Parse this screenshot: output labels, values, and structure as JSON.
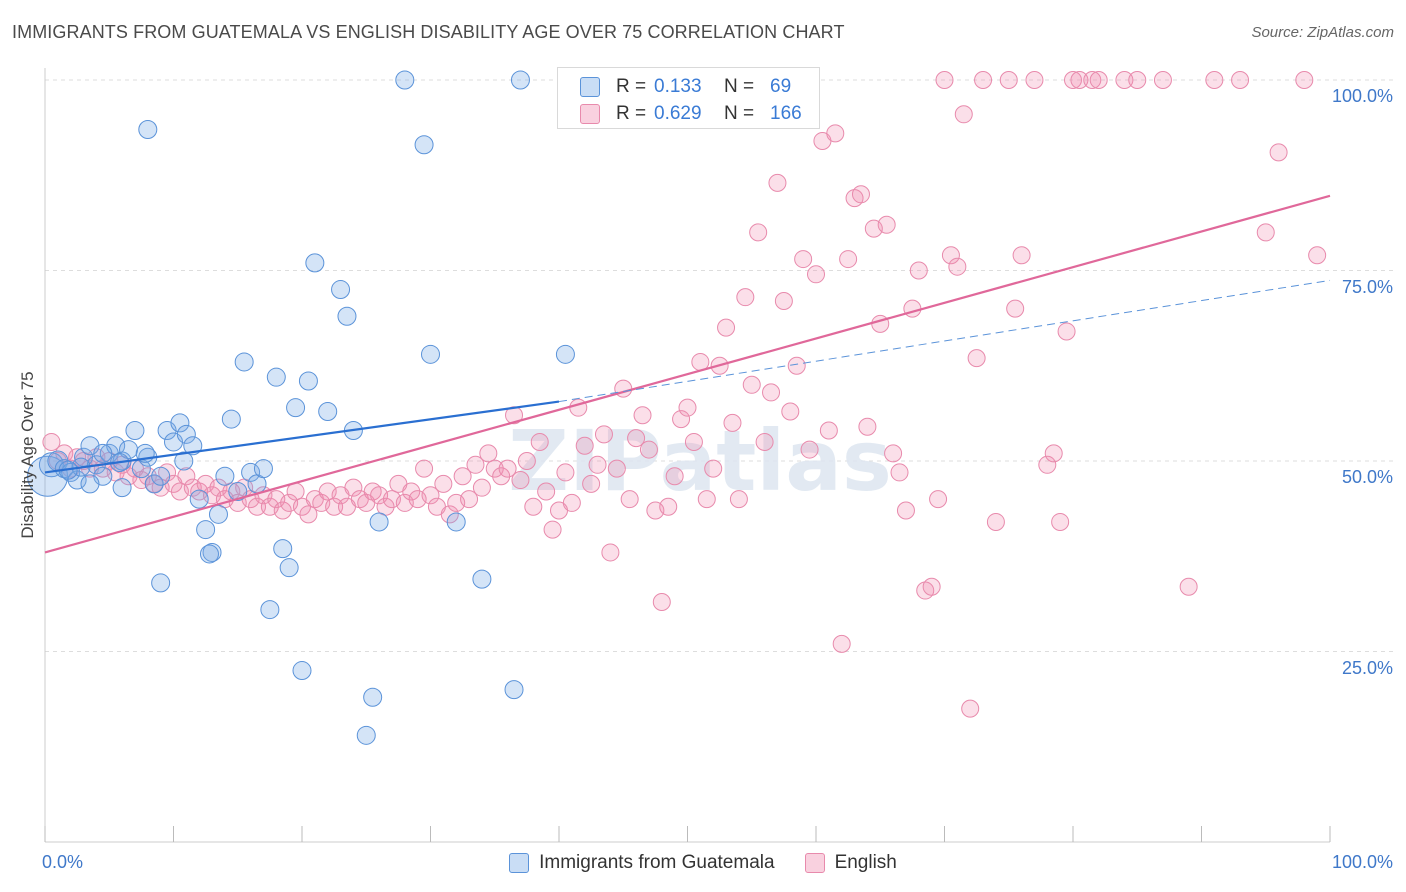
{
  "title": "IMMIGRANTS FROM GUATEMALA VS ENGLISH DISABILITY AGE OVER 75 CORRELATION CHART",
  "source": "Source: ZipAtlas.com",
  "watermark": "ZIPatlas",
  "colors": {
    "blue_fill": "rgba(120,170,230,0.32)",
    "blue_stroke": "#5b93d9",
    "blue_line": "#2a6fd1",
    "pink_fill": "rgba(240,140,175,0.28)",
    "pink_stroke": "#e88aac",
    "pink_line": "#e0689a",
    "tick_label": "#3f78c9",
    "grid": "#dddddd"
  },
  "legend_box": {
    "rows": [
      {
        "r_label": "R =",
        "r_value": "0.133",
        "n_label": "N =",
        "n_value": "69"
      },
      {
        "r_label": "R =",
        "r_value": "0.629",
        "n_label": "N =",
        "n_value": "166"
      }
    ]
  },
  "legend_bottom": {
    "series1": "Immigrants from Guatemala",
    "series2": "English"
  },
  "chart_data": {
    "type": "scatter",
    "title": "IMMIGRANTS FROM GUATEMALA VS ENGLISH DISABILITY AGE OVER 75 CORRELATION CHART",
    "xlabel": "",
    "ylabel": "Disability Age Over 75",
    "x_tick_labels": [
      "0.0%",
      "100.0%"
    ],
    "y_tick_labels": [
      "25.0%",
      "50.0%",
      "75.0%",
      "100.0%"
    ],
    "xlim": [
      0,
      100
    ],
    "ylim": [
      0,
      100
    ],
    "y_ticks": [
      25,
      50,
      75,
      100
    ],
    "grid": true,
    "series": [
      {
        "name": "Immigrants from Guatemala",
        "color": "blue",
        "r": 0.133,
        "n": 69,
        "trend": {
          "x0": 0,
          "y0": 48.5,
          "x1": 40,
          "y1": 57.8,
          "dash_to_x": 100,
          "dash_to_y": 73.7
        },
        "points": [
          [
            0.2,
            48.0,
            20
          ],
          [
            0.5,
            49.5,
            12
          ],
          [
            1.0,
            50.0,
            10
          ],
          [
            1.5,
            49.0,
            9
          ],
          [
            2.0,
            48.5,
            9
          ],
          [
            2.5,
            47.5,
            9
          ],
          [
            3.0,
            50.5,
            9
          ],
          [
            3.5,
            52.0,
            9
          ],
          [
            4.0,
            49.5,
            9
          ],
          [
            4.5,
            48.0,
            9
          ],
          [
            5.0,
            51.0,
            9
          ],
          [
            5.5,
            52.0,
            9
          ],
          [
            6.0,
            50.0,
            9
          ],
          [
            6.5,
            51.5,
            9
          ],
          [
            7.0,
            54.0,
            9
          ],
          [
            7.5,
            49.0,
            9
          ],
          [
            8.0,
            50.5,
            9
          ],
          [
            8.5,
            47.0,
            9
          ],
          [
            9.0,
            48.0,
            9
          ],
          [
            9.5,
            54.0,
            9
          ],
          [
            10.0,
            52.5,
            9
          ],
          [
            10.5,
            55.0,
            9
          ],
          [
            11.0,
            53.5,
            9
          ],
          [
            12.0,
            45.0,
            9
          ],
          [
            12.5,
            41.0,
            9
          ],
          [
            13.0,
            38.0,
            9
          ],
          [
            13.5,
            43.0,
            9
          ],
          [
            14.0,
            48.0,
            9
          ],
          [
            14.5,
            55.5,
            9
          ],
          [
            15.0,
            46.0,
            9
          ],
          [
            16.0,
            48.5,
            9
          ],
          [
            16.5,
            47.0,
            9
          ],
          [
            17.5,
            30.5,
            9
          ],
          [
            18.0,
            61.0,
            9
          ],
          [
            18.5,
            38.5,
            9
          ],
          [
            19.0,
            36.0,
            9
          ],
          [
            19.5,
            57.0,
            9
          ],
          [
            20.0,
            22.5,
            9
          ],
          [
            20.5,
            60.5,
            9
          ],
          [
            21.0,
            76.0,
            9
          ],
          [
            22.0,
            56.5,
            9
          ],
          [
            23.0,
            72.5,
            9
          ],
          [
            23.5,
            69.0,
            9
          ],
          [
            24.0,
            54.0,
            9
          ],
          [
            25.0,
            14.0,
            9
          ],
          [
            25.5,
            19.0,
            9
          ],
          [
            26.0,
            42.0,
            9
          ],
          [
            28.0,
            100.0,
            9
          ],
          [
            29.5,
            91.5,
            9
          ],
          [
            30.0,
            64.0,
            9
          ],
          [
            32.0,
            42.0,
            9
          ],
          [
            34.0,
            34.5,
            9
          ],
          [
            36.5,
            20.0,
            9
          ],
          [
            37.0,
            100.0,
            9
          ],
          [
            40.5,
            64.0,
            9
          ],
          [
            8.0,
            93.5,
            9
          ],
          [
            9.0,
            34.0,
            9
          ],
          [
            11.5,
            52.0,
            9
          ],
          [
            15.5,
            63.0,
            9
          ],
          [
            6.0,
            46.5,
            9
          ],
          [
            3.5,
            47.0,
            9
          ],
          [
            4.5,
            51.0,
            9
          ],
          [
            2.8,
            49.2,
            9
          ],
          [
            1.8,
            48.8,
            9
          ],
          [
            12.8,
            37.8,
            9
          ],
          [
            17.0,
            49.0,
            9
          ],
          [
            7.8,
            51.0,
            9
          ],
          [
            10.8,
            50.0,
            9
          ],
          [
            5.8,
            49.8,
            9
          ]
        ]
      },
      {
        "name": "English",
        "color": "pink",
        "r": 0.629,
        "n": 166,
        "trend": {
          "x0": 0,
          "y0": 38.0,
          "x1": 100,
          "y1": 84.8
        },
        "points": [
          [
            0.5,
            52.5
          ],
          [
            1.0,
            50.0
          ],
          [
            1.5,
            51.0
          ],
          [
            2.0,
            49.0
          ],
          [
            2.5,
            50.5
          ],
          [
            3.0,
            50.0
          ],
          [
            3.5,
            49.0
          ],
          [
            4.0,
            50.5
          ],
          [
            4.5,
            49.0
          ],
          [
            5.0,
            50.0
          ],
          [
            5.5,
            48.5
          ],
          [
            6.0,
            49.5
          ],
          [
            6.5,
            48.0
          ],
          [
            7.0,
            49.0
          ],
          [
            7.5,
            47.5
          ],
          [
            8.0,
            48.0
          ],
          [
            8.5,
            47.0
          ],
          [
            9.0,
            46.5
          ],
          [
            9.5,
            48.5
          ],
          [
            10.0,
            47.0
          ],
          [
            10.5,
            46.0
          ],
          [
            11.0,
            48.0
          ],
          [
            11.5,
            46.5
          ],
          [
            12.0,
            46.0
          ],
          [
            12.5,
            47.0
          ],
          [
            13.0,
            45.5
          ],
          [
            13.5,
            46.5
          ],
          [
            14.0,
            45.0
          ],
          [
            14.5,
            46.0
          ],
          [
            15.0,
            44.5
          ],
          [
            15.5,
            46.5
          ],
          [
            16.0,
            45.0
          ],
          [
            16.5,
            44.0
          ],
          [
            17.0,
            45.5
          ],
          [
            17.5,
            44.0
          ],
          [
            18.0,
            45.0
          ],
          [
            18.5,
            43.5
          ],
          [
            19.0,
            44.5
          ],
          [
            19.5,
            46.0
          ],
          [
            20.0,
            44.0
          ],
          [
            20.5,
            43.0
          ],
          [
            21.0,
            45.0
          ],
          [
            21.5,
            44.5
          ],
          [
            22.0,
            46.0
          ],
          [
            22.5,
            44.0
          ],
          [
            23.0,
            45.5
          ],
          [
            23.5,
            44.0
          ],
          [
            24.0,
            46.5
          ],
          [
            24.5,
            45.0
          ],
          [
            25.0,
            44.5
          ],
          [
            25.5,
            46.0
          ],
          [
            26.0,
            45.5
          ],
          [
            26.5,
            44.0
          ],
          [
            27.0,
            45.0
          ],
          [
            27.5,
            47.0
          ],
          [
            28.0,
            44.5
          ],
          [
            28.5,
            46.0
          ],
          [
            29.0,
            45.0
          ],
          [
            29.5,
            49.0
          ],
          [
            30.0,
            45.5
          ],
          [
            30.5,
            44.0
          ],
          [
            31.0,
            47.0
          ],
          [
            31.5,
            43.0
          ],
          [
            32.0,
            44.5
          ],
          [
            32.5,
            48.0
          ],
          [
            33.0,
            45.0
          ],
          [
            33.5,
            49.5
          ],
          [
            34.0,
            46.5
          ],
          [
            34.5,
            51.0
          ],
          [
            35.0,
            49.0
          ],
          [
            35.5,
            48.0
          ],
          [
            36.0,
            49.0
          ],
          [
            36.5,
            56.0
          ],
          [
            37.0,
            47.5
          ],
          [
            37.5,
            50.0
          ],
          [
            38.0,
            44.0
          ],
          [
            38.5,
            52.5
          ],
          [
            39.0,
            46.0
          ],
          [
            39.5,
            41.0
          ],
          [
            40.0,
            43.5
          ],
          [
            40.5,
            48.5
          ],
          [
            41.0,
            44.5
          ],
          [
            41.5,
            57.0
          ],
          [
            42.0,
            52.0
          ],
          [
            42.5,
            47.0
          ],
          [
            43.0,
            49.5
          ],
          [
            43.5,
            53.5
          ],
          [
            44.0,
            38.0
          ],
          [
            44.5,
            49.0
          ],
          [
            45.0,
            59.5
          ],
          [
            45.5,
            45.0
          ],
          [
            46.0,
            53.0
          ],
          [
            46.5,
            56.0
          ],
          [
            47.0,
            51.5
          ],
          [
            47.5,
            43.5
          ],
          [
            48.0,
            31.5
          ],
          [
            48.5,
            44.0
          ],
          [
            49.0,
            48.0
          ],
          [
            49.5,
            55.5
          ],
          [
            50.0,
            57.0
          ],
          [
            50.5,
            52.5
          ],
          [
            51.0,
            63.0
          ],
          [
            51.5,
            45.0
          ],
          [
            52.0,
            49.0
          ],
          [
            52.5,
            62.5
          ],
          [
            53.0,
            67.5
          ],
          [
            53.5,
            55.0
          ],
          [
            54.0,
            45.0
          ],
          [
            54.5,
            71.5
          ],
          [
            55.0,
            60.0
          ],
          [
            55.5,
            80.0
          ],
          [
            56.0,
            52.5
          ],
          [
            56.5,
            59.0
          ],
          [
            57.0,
            86.5
          ],
          [
            57.5,
            71.0
          ],
          [
            58.0,
            56.5
          ],
          [
            58.5,
            62.5
          ],
          [
            59.0,
            76.5
          ],
          [
            59.5,
            51.5
          ],
          [
            60.0,
            74.5
          ],
          [
            60.5,
            92.0
          ],
          [
            61.0,
            54.0
          ],
          [
            61.5,
            93.0
          ],
          [
            62.0,
            26.0
          ],
          [
            62.5,
            76.5
          ],
          [
            63.0,
            84.5
          ],
          [
            63.5,
            85.0
          ],
          [
            64.0,
            54.5
          ],
          [
            64.5,
            80.5
          ],
          [
            65.0,
            68.0
          ],
          [
            65.5,
            81.0
          ],
          [
            66.0,
            51.0
          ],
          [
            66.5,
            48.5
          ],
          [
            67.0,
            43.5
          ],
          [
            67.5,
            70.0
          ],
          [
            68.0,
            75.0
          ],
          [
            68.5,
            33.0
          ],
          [
            69.0,
            33.5
          ],
          [
            69.5,
            45.0
          ],
          [
            70.0,
            100.0
          ],
          [
            70.5,
            77.0
          ],
          [
            71.0,
            75.5
          ],
          [
            71.5,
            95.5
          ],
          [
            72.0,
            17.5
          ],
          [
            72.5,
            63.5
          ],
          [
            73.0,
            100.0
          ],
          [
            74.0,
            42.0
          ],
          [
            75.0,
            100.0
          ],
          [
            75.5,
            70.0
          ],
          [
            76.0,
            77.0
          ],
          [
            77.0,
            100.0
          ],
          [
            78.0,
            49.5
          ],
          [
            78.5,
            51.0
          ],
          [
            79.0,
            42.0
          ],
          [
            79.5,
            67.0
          ],
          [
            80.0,
            100.0
          ],
          [
            80.5,
            100.0
          ],
          [
            81.5,
            100.0
          ],
          [
            82.0,
            100.0
          ],
          [
            84.0,
            100.0
          ],
          [
            85.0,
            100.0
          ],
          [
            87.0,
            100.0
          ],
          [
            89.0,
            33.5
          ],
          [
            91.0,
            100.0
          ],
          [
            93.0,
            100.0
          ],
          [
            95.0,
            80.0
          ],
          [
            96.0,
            90.5
          ],
          [
            98.0,
            100.0
          ],
          [
            99.0,
            77.0
          ]
        ]
      }
    ]
  }
}
